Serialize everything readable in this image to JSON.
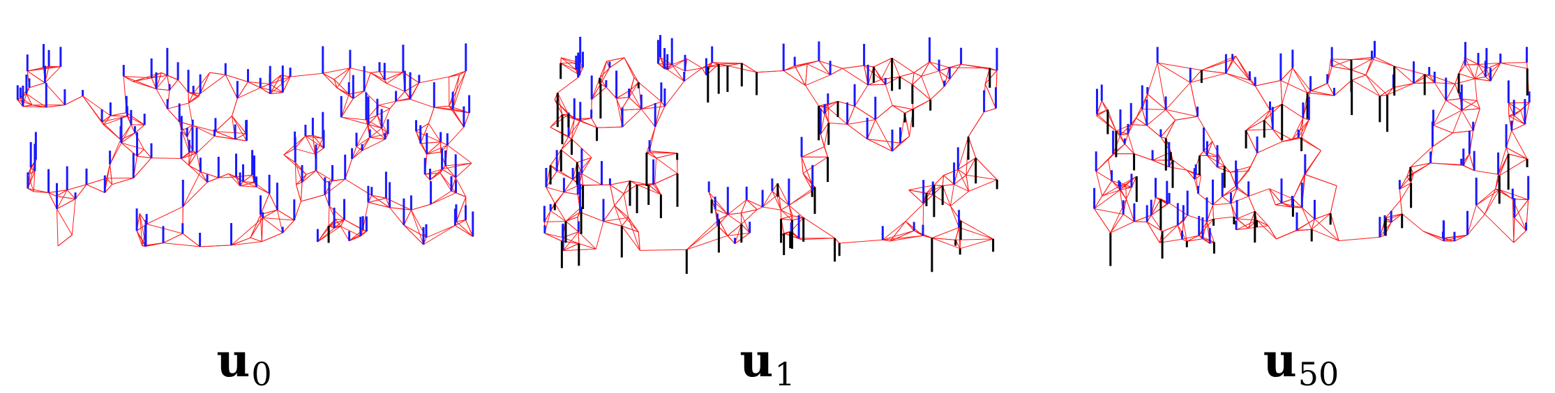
{
  "figure": {
    "colors": {
      "edge": "#ff1a1a",
      "positive_spike": "#1a1aff",
      "negative_spike": "#000000"
    },
    "panels": [
      {
        "name": "u0",
        "caption_base": "u",
        "caption_sub": "0",
        "seed": 11,
        "neg_frac": 0.02,
        "holes": [
          [
            0.12,
            0.4,
            0.06
          ],
          [
            0.33,
            0.62,
            0.05
          ],
          [
            0.58,
            0.3,
            0.06
          ],
          [
            0.8,
            0.6,
            0.05
          ],
          [
            0.45,
            0.78,
            0.05
          ]
        ]
      },
      {
        "name": "u1",
        "caption_base": "u",
        "caption_sub": "1",
        "seed": 23,
        "neg_frac": 0.45,
        "holes": [
          [
            0.42,
            0.4,
            0.13
          ],
          [
            0.7,
            0.7,
            0.1
          ],
          [
            0.3,
            0.85,
            0.06
          ],
          [
            0.88,
            0.48,
            0.05
          ]
        ]
      },
      {
        "name": "u50",
        "caption_base": "u",
        "caption_sub": "50",
        "seed": 37,
        "neg_frac": 0.3,
        "holes": [
          [
            0.08,
            0.12,
            0.06
          ],
          [
            0.62,
            0.48,
            0.1
          ],
          [
            0.8,
            0.8,
            0.06
          ],
          [
            0.3,
            0.3,
            0.05
          ]
        ]
      }
    ]
  }
}
